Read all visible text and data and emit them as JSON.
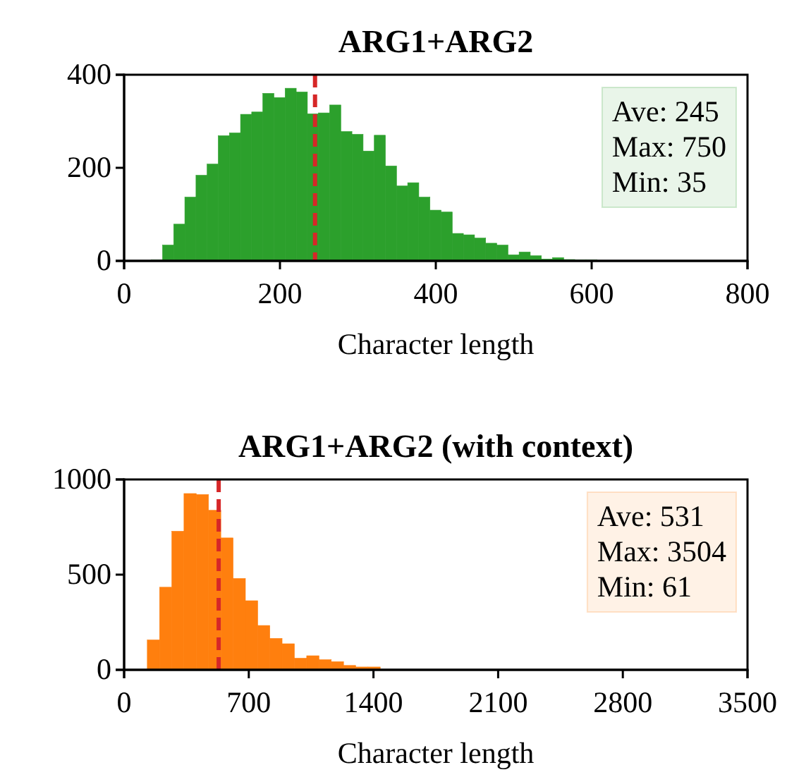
{
  "chart_data": [
    {
      "type": "histogram",
      "title": "ARG1+ARG2",
      "xlabel": "Character length",
      "color": "#2ca02c",
      "bins": [
        35,
        49.3,
        63.6,
        77.9,
        92.2,
        106.5,
        120.8,
        135.1,
        149.4,
        163.7,
        178,
        192.3,
        206.6,
        220.9,
        235.2,
        249.5,
        263.8,
        278.1,
        292.4,
        306.7,
        321,
        335.3,
        349.6,
        363.9,
        378.2,
        392.5,
        406.8,
        421.1,
        435.4,
        449.7,
        464,
        478.3,
        492.6,
        506.9,
        521.2,
        535.5,
        549.8,
        564.1,
        578.4,
        592.7,
        607,
        621.3,
        635.6,
        649.9,
        664.2,
        678.5,
        692.8,
        707.1,
        721.4,
        735.7,
        750
      ],
      "values": [
        2,
        34,
        79,
        137,
        184,
        208,
        269,
        275,
        315,
        320,
        360,
        351,
        371,
        363,
        316,
        318,
        335,
        278,
        272,
        236,
        270,
        204,
        161,
        168,
        137,
        109,
        105,
        59,
        56,
        49,
        38,
        34,
        13,
        19,
        11,
        4,
        7,
        3,
        2,
        2,
        1,
        1,
        1,
        1,
        0,
        0,
        0,
        0,
        0,
        1
      ],
      "xlim": [
        0,
        800
      ],
      "xticks": [
        0,
        200,
        400,
        600,
        800
      ],
      "ylim": [
        0,
        400
      ],
      "yticks": [
        0,
        200,
        400
      ],
      "ref_lines": [
        {
          "axis": "x",
          "value": 245,
          "color": "#d62728",
          "line_style": "dashed"
        }
      ],
      "annotations": [
        "Ave: 245",
        "Max: 750",
        "Min: 35"
      ]
    },
    {
      "type": "histogram",
      "title": "ARG1+ARG2 (with context)",
      "xlabel": "Character length",
      "color": "#ff7f0e",
      "bins": [
        61,
        130,
        199,
        268,
        336,
        405,
        474,
        543,
        612,
        681,
        750,
        818,
        887,
        956,
        1025,
        1094,
        1163,
        1232,
        1300,
        1369,
        1438,
        1507,
        1576,
        1645,
        1714,
        1782,
        1851,
        1920,
        1989,
        2058,
        2127,
        2196,
        2265,
        2333,
        2402,
        2471,
        2540,
        2609,
        2678,
        2747,
        2815,
        2884,
        2953,
        3022,
        3091,
        3160,
        3229,
        3297,
        3366,
        3435,
        3504
      ],
      "values": [
        null,
        157,
        434,
        728,
        926,
        921,
        838,
        693,
        480,
        363,
        233,
        165,
        137,
        61,
        74,
        53,
        43,
        23,
        15,
        15,
        null,
        null,
        null,
        2,
        2,
        1,
        1,
        1,
        1,
        1,
        0,
        0,
        0,
        0,
        0,
        0,
        0,
        0,
        0,
        0,
        0,
        0,
        0,
        0,
        0,
        0,
        0,
        0,
        0,
        null
      ],
      "xlim": [
        0,
        3500
      ],
      "xticks": [
        0,
        700,
        1400,
        2100,
        2800,
        3500
      ],
      "ylim": [
        0,
        1000
      ],
      "yticks": [
        0,
        500,
        1000
      ],
      "ref_lines": [
        {
          "axis": "x",
          "value": 531,
          "color": "#d62728",
          "line_style": "dashed"
        }
      ],
      "annotations": [
        "Ave: 531",
        "Max: 3504",
        "Min: 61"
      ]
    }
  ]
}
